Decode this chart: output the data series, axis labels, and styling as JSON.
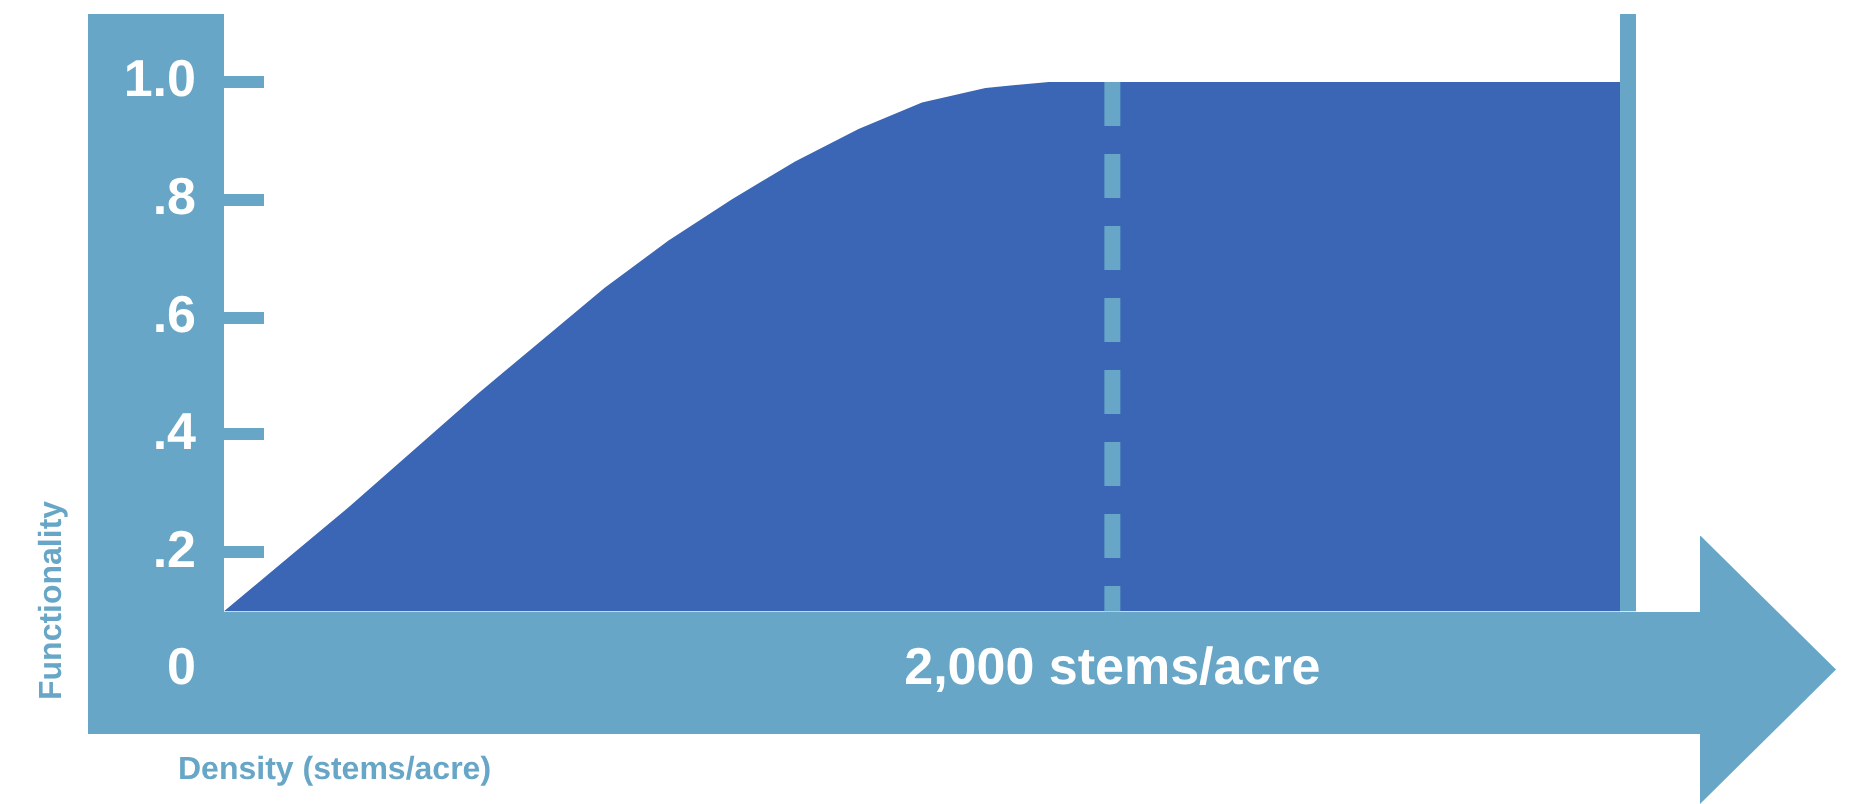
{
  "chart_data": {
    "type": "area",
    "xlabel": "Density (stems/acre)",
    "ylabel": "Functionality",
    "categories": [
      null,
      null,
      null,
      null,
      null,
      null,
      null,
      null,
      null,
      null,
      null,
      null,
      null,
      null,
      "2,000 stems/acre",
      null,
      null,
      null,
      null,
      null,
      null,
      null,
      null
    ],
    "values": [
      0.1,
      0.19,
      0.28,
      0.375,
      0.47,
      0.56,
      0.65,
      0.73,
      0.8,
      0.865,
      0.92,
      0.965,
      0.99,
      1.0,
      1.0,
      1.0,
      1.0,
      1.0,
      1.0,
      1.0,
      1.0,
      1.0,
      1.0
    ],
    "color": "#3a66b5",
    "ylim": [
      0,
      1
    ],
    "yticks": [
      0,
      {
        "value": 0.2,
        "label": ".2"
      },
      {
        "value": 0.4,
        "label": ".4"
      },
      {
        "value": 0.6,
        "label": ".6"
      },
      {
        "value": 0.8,
        "label": ".8"
      },
      {
        "value": 1,
        "label": "1.0"
      }
    ],
    "ref_lines": [
      {
        "axis": "x",
        "value": "2,000 stems/acre",
        "color": "#67a6c6",
        "line_style": "dashed"
      }
    ]
  }
}
